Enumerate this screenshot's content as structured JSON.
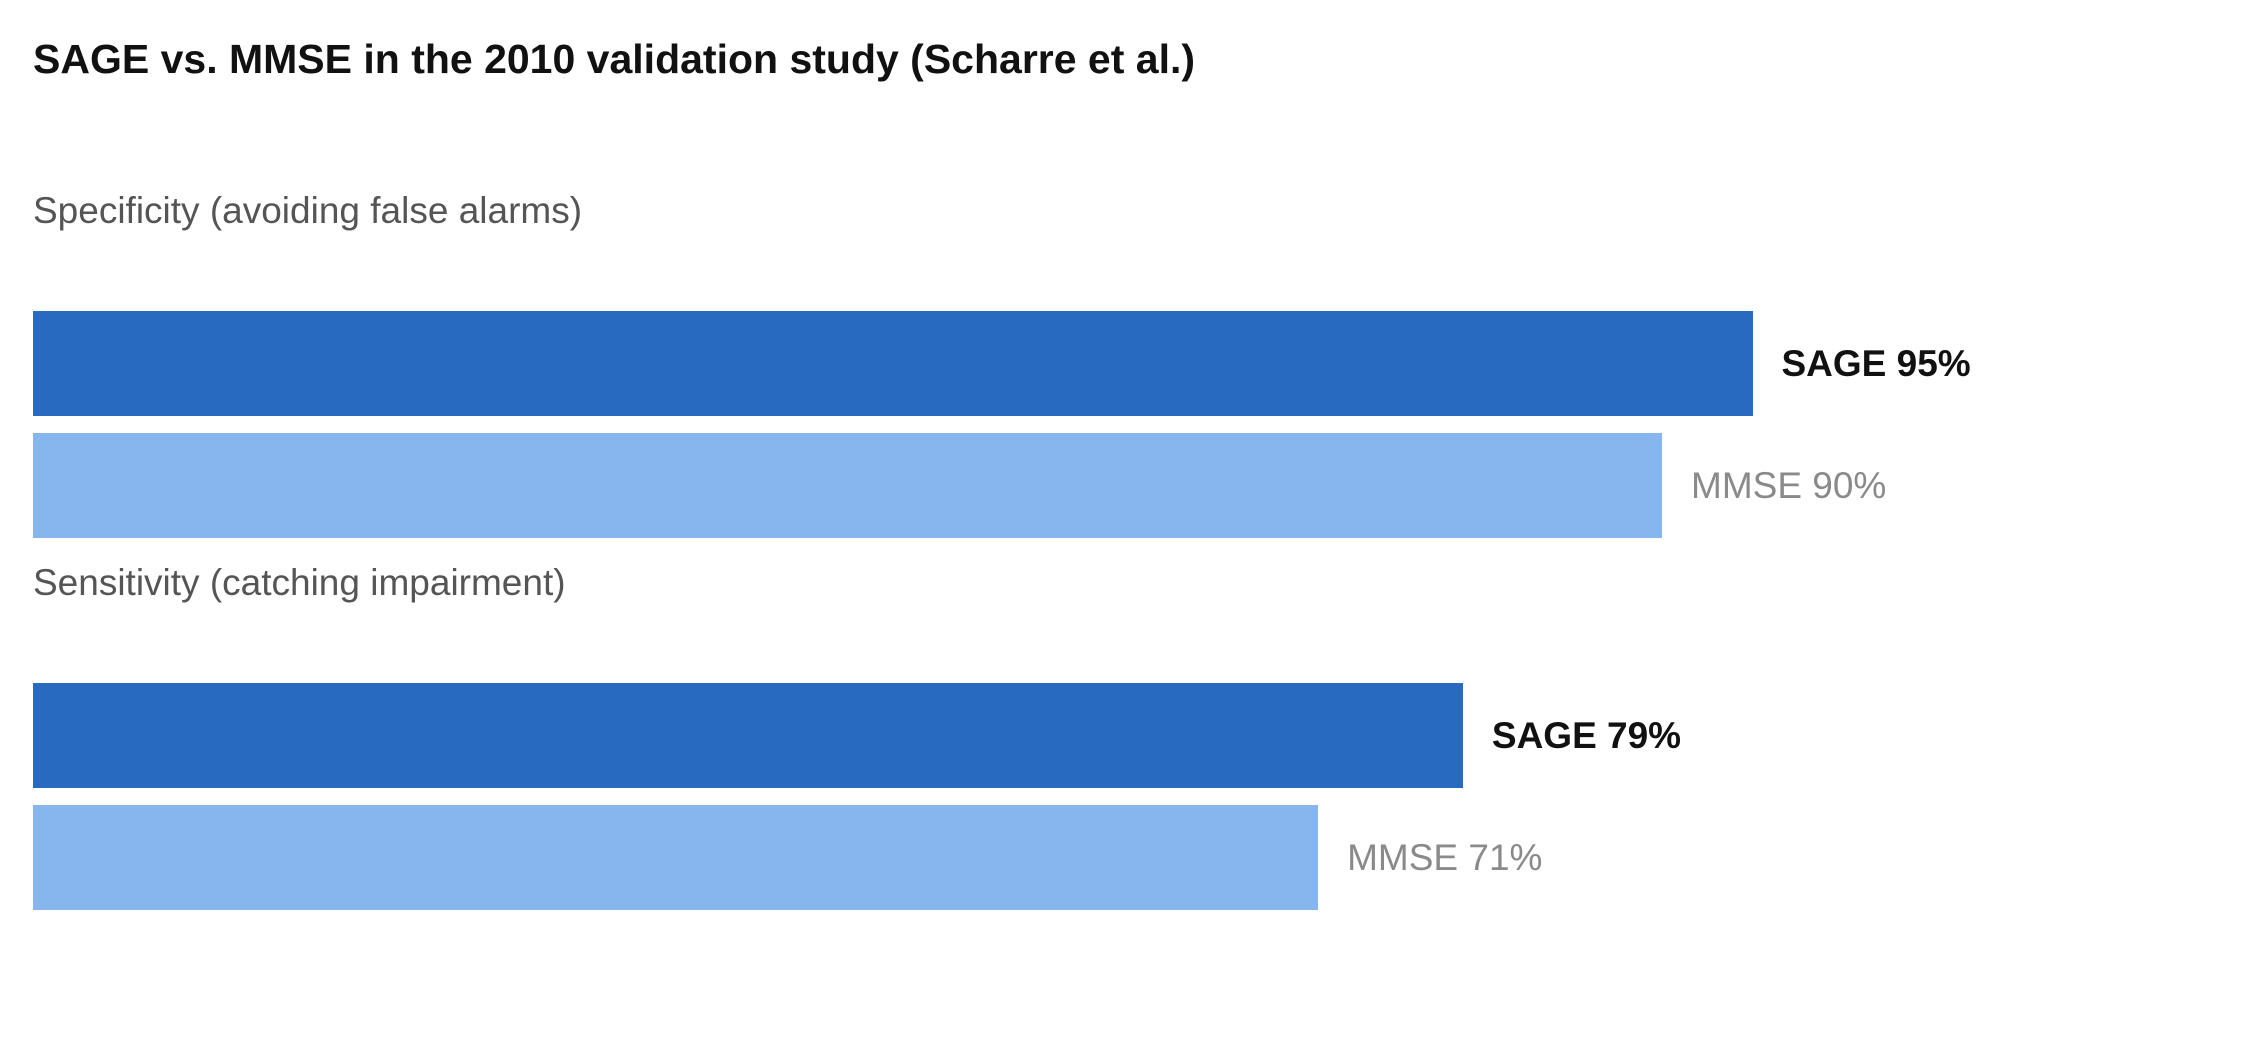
{
  "chart_data": {
    "type": "bar",
    "orientation": "horizontal",
    "title": "SAGE vs. MMSE in the 2010 validation study (Scharre et al.)",
    "xlim": [
      0,
      100
    ],
    "value_unit": "%",
    "grid": false,
    "legend": "none",
    "groups": [
      {
        "label": "Specificity (avoiding false alarms)",
        "bars": [
          {
            "name": "SAGE",
            "value": 95,
            "label": "SAGE 95%",
            "color": "#276ac0",
            "emphasis": true
          },
          {
            "name": "MMSE",
            "value": 90,
            "label": "MMSE 90%",
            "color": "#87b6ef",
            "emphasis": false
          }
        ]
      },
      {
        "label": "Sensitivity (catching impairment)",
        "bars": [
          {
            "name": "SAGE",
            "value": 79,
            "label": "SAGE 79%",
            "color": "#276ac0",
            "emphasis": true
          },
          {
            "name": "MMSE",
            "value": 71,
            "label": "MMSE 71%",
            "color": "#87b6ef",
            "emphasis": false
          }
        ]
      }
    ]
  }
}
